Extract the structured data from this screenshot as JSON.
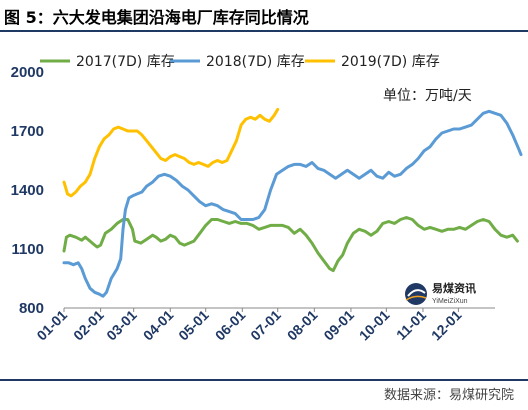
{
  "page": {
    "title": "图 5：六大发电集团沿海电厂库存同比情况",
    "source": "数据来源：易煤研究院"
  },
  "watermark": {
    "name": "易煤资讯",
    "sub": "YiMeiZiXun"
  },
  "chart_data": {
    "type": "line",
    "unit_label": "单位：万吨/天",
    "ylim": [
      800,
      2000
    ],
    "yticks": [
      800,
      1100,
      1400,
      1700,
      2000
    ],
    "xticks": [
      "01-01",
      "02-01",
      "03-01",
      "04-01",
      "05-01",
      "06-01",
      "07-01",
      "08-01",
      "09-01",
      "10-01",
      "11-01",
      "12-01"
    ],
    "legend_position": "top",
    "grid": false,
    "colors": {
      "2017(7D) 库存": "#70ad47",
      "2018(7D) 库存": "#5b9bd5",
      "2019(7D) 库存": "#ffc000"
    },
    "series": [
      {
        "name": "2017(7D) 库存",
        "points": [
          [
            0,
            1090
          ],
          [
            2,
            1160
          ],
          [
            5,
            1170
          ],
          [
            10,
            1160
          ],
          [
            15,
            1145
          ],
          [
            18,
            1160
          ],
          [
            22,
            1140
          ],
          [
            26,
            1120
          ],
          [
            28,
            1110
          ],
          [
            31,
            1120
          ],
          [
            35,
            1180
          ],
          [
            40,
            1200
          ],
          [
            45,
            1230
          ],
          [
            50,
            1250
          ],
          [
            54,
            1250
          ],
          [
            58,
            1200
          ],
          [
            60,
            1140
          ],
          [
            65,
            1130
          ],
          [
            70,
            1150
          ],
          [
            75,
            1170
          ],
          [
            78,
            1160
          ],
          [
            82,
            1140
          ],
          [
            86,
            1150
          ],
          [
            90,
            1170
          ],
          [
            94,
            1160
          ],
          [
            98,
            1130
          ],
          [
            102,
            1120
          ],
          [
            106,
            1130
          ],
          [
            110,
            1140
          ],
          [
            115,
            1180
          ],
          [
            120,
            1220
          ],
          [
            125,
            1250
          ],
          [
            130,
            1250
          ],
          [
            135,
            1240
          ],
          [
            140,
            1230
          ],
          [
            145,
            1240
          ],
          [
            150,
            1230
          ],
          [
            155,
            1230
          ],
          [
            160,
            1220
          ],
          [
            165,
            1200
          ],
          [
            170,
            1210
          ],
          [
            175,
            1220
          ],
          [
            180,
            1220
          ],
          [
            185,
            1220
          ],
          [
            190,
            1210
          ],
          [
            195,
            1180
          ],
          [
            200,
            1200
          ],
          [
            205,
            1170
          ],
          [
            210,
            1130
          ],
          [
            215,
            1080
          ],
          [
            220,
            1040
          ],
          [
            225,
            1000
          ],
          [
            228,
            990
          ],
          [
            232,
            1040
          ],
          [
            236,
            1070
          ],
          [
            240,
            1130
          ],
          [
            245,
            1180
          ],
          [
            250,
            1200
          ],
          [
            255,
            1190
          ],
          [
            260,
            1170
          ],
          [
            265,
            1190
          ],
          [
            270,
            1230
          ],
          [
            275,
            1240
          ],
          [
            280,
            1230
          ],
          [
            285,
            1250
          ],
          [
            290,
            1260
          ],
          [
            295,
            1250
          ],
          [
            300,
            1220
          ],
          [
            305,
            1200
          ],
          [
            310,
            1210
          ],
          [
            315,
            1200
          ],
          [
            320,
            1190
          ],
          [
            325,
            1200
          ],
          [
            330,
            1200
          ],
          [
            335,
            1210
          ],
          [
            340,
            1200
          ],
          [
            345,
            1220
          ],
          [
            350,
            1240
          ],
          [
            355,
            1250
          ],
          [
            360,
            1240
          ],
          [
            365,
            1200
          ],
          [
            370,
            1170
          ],
          [
            375,
            1160
          ],
          [
            380,
            1170
          ],
          [
            384,
            1140
          ]
        ]
      },
      {
        "name": "2018(7D) 库存",
        "points": [
          [
            0,
            1030
          ],
          [
            4,
            1030
          ],
          [
            8,
            1020
          ],
          [
            12,
            1030
          ],
          [
            15,
            1000
          ],
          [
            18,
            950
          ],
          [
            22,
            900
          ],
          [
            26,
            880
          ],
          [
            30,
            870
          ],
          [
            33,
            860
          ],
          [
            36,
            880
          ],
          [
            40,
            950
          ],
          [
            45,
            1000
          ],
          [
            48,
            1050
          ],
          [
            50,
            1200
          ],
          [
            52,
            1300
          ],
          [
            55,
            1360
          ],
          [
            58,
            1370
          ],
          [
            62,
            1380
          ],
          [
            66,
            1390
          ],
          [
            70,
            1420
          ],
          [
            75,
            1440
          ],
          [
            80,
            1470
          ],
          [
            85,
            1480
          ],
          [
            90,
            1470
          ],
          [
            95,
            1450
          ],
          [
            100,
            1420
          ],
          [
            105,
            1400
          ],
          [
            110,
            1370
          ],
          [
            115,
            1340
          ],
          [
            120,
            1320
          ],
          [
            125,
            1330
          ],
          [
            130,
            1320
          ],
          [
            135,
            1300
          ],
          [
            140,
            1290
          ],
          [
            145,
            1280
          ],
          [
            150,
            1250
          ],
          [
            155,
            1250
          ],
          [
            160,
            1250
          ],
          [
            165,
            1260
          ],
          [
            170,
            1300
          ],
          [
            175,
            1400
          ],
          [
            180,
            1480
          ],
          [
            185,
            1500
          ],
          [
            190,
            1520
          ],
          [
            195,
            1530
          ],
          [
            200,
            1530
          ],
          [
            205,
            1520
          ],
          [
            210,
            1540
          ],
          [
            215,
            1510
          ],
          [
            220,
            1500
          ],
          [
            225,
            1480
          ],
          [
            230,
            1460
          ],
          [
            235,
            1480
          ],
          [
            240,
            1500
          ],
          [
            245,
            1480
          ],
          [
            250,
            1460
          ],
          [
            255,
            1480
          ],
          [
            260,
            1500
          ],
          [
            265,
            1470
          ],
          [
            270,
            1460
          ],
          [
            275,
            1490
          ],
          [
            280,
            1470
          ],
          [
            285,
            1480
          ],
          [
            290,
            1510
          ],
          [
            295,
            1530
          ],
          [
            300,
            1560
          ],
          [
            305,
            1600
          ],
          [
            310,
            1620
          ],
          [
            315,
            1660
          ],
          [
            320,
            1690
          ],
          [
            325,
            1700
          ],
          [
            330,
            1710
          ],
          [
            335,
            1710
          ],
          [
            340,
            1720
          ],
          [
            345,
            1730
          ],
          [
            350,
            1760
          ],
          [
            355,
            1790
          ],
          [
            360,
            1800
          ],
          [
            365,
            1790
          ],
          [
            370,
            1780
          ],
          [
            375,
            1740
          ],
          [
            380,
            1680
          ],
          [
            385,
            1610
          ],
          [
            387,
            1580
          ]
        ]
      },
      {
        "name": "2019(7D) 库存",
        "points": [
          [
            0,
            1440
          ],
          [
            3,
            1380
          ],
          [
            6,
            1370
          ],
          [
            10,
            1390
          ],
          [
            14,
            1420
          ],
          [
            18,
            1440
          ],
          [
            22,
            1480
          ],
          [
            26,
            1560
          ],
          [
            30,
            1620
          ],
          [
            34,
            1660
          ],
          [
            38,
            1680
          ],
          [
            42,
            1710
          ],
          [
            46,
            1720
          ],
          [
            50,
            1710
          ],
          [
            54,
            1700
          ],
          [
            58,
            1700
          ],
          [
            62,
            1700
          ],
          [
            66,
            1680
          ],
          [
            70,
            1650
          ],
          [
            74,
            1620
          ],
          [
            78,
            1590
          ],
          [
            82,
            1560
          ],
          [
            86,
            1550
          ],
          [
            90,
            1570
          ],
          [
            94,
            1580
          ],
          [
            98,
            1570
          ],
          [
            102,
            1560
          ],
          [
            106,
            1540
          ],
          [
            110,
            1530
          ],
          [
            114,
            1540
          ],
          [
            118,
            1530
          ],
          [
            122,
            1520
          ],
          [
            126,
            1540
          ],
          [
            130,
            1550
          ],
          [
            134,
            1540
          ],
          [
            138,
            1550
          ],
          [
            142,
            1600
          ],
          [
            146,
            1650
          ],
          [
            150,
            1730
          ],
          [
            154,
            1760
          ],
          [
            158,
            1770
          ],
          [
            162,
            1760
          ],
          [
            166,
            1780
          ],
          [
            170,
            1760
          ],
          [
            174,
            1750
          ],
          [
            178,
            1780
          ],
          [
            181,
            1810
          ]
        ]
      }
    ]
  }
}
